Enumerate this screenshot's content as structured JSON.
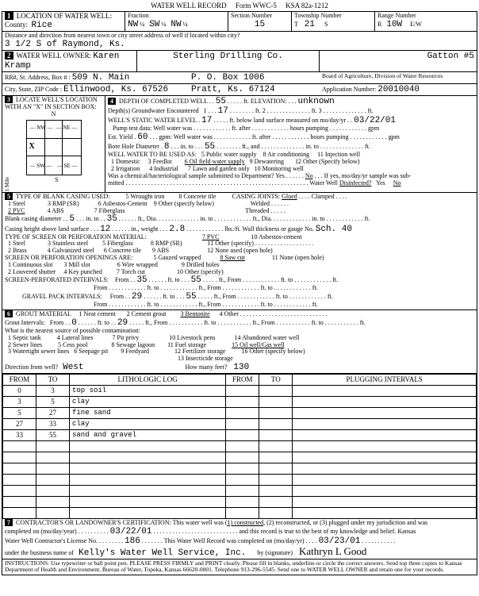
{
  "form": {
    "title": "WATER WELL RECORD",
    "formNo": "Form WWC-5",
    "ksa": "KSA 82a-1212"
  },
  "location": {
    "county": "Rice",
    "fraction": {
      "a": "NW",
      "a4": "¼",
      "b": "SW",
      "b4": "¼",
      "c": "NW",
      "c4": "¼"
    },
    "sectionNumber": "15",
    "township": "21",
    "townshipDir": "S",
    "range": "10W",
    "rangeDir": "E/W",
    "distDir": "3 1/2 S of Raymond, Ks."
  },
  "owner": {
    "name": "Karen Kramp",
    "company": "Sterling Drilling Co.",
    "wellId": "Gatton #5",
    "rr": "509 N. Main",
    "po": "P. O. Box 1006",
    "board": "Board of Agriculture, Division of Water Resources",
    "city": "Ellinwood, Ks. 67526",
    "city2": "Pratt, Ks. 67124",
    "appnum": "20010040"
  },
  "depth": {
    "completed": "55",
    "elevation": "unknown",
    "gwEncountered1": "17",
    "gwEncountered2": "3",
    "staticLevel": "17",
    "staticDate": "03/22/01",
    "estYield": "60",
    "boreDia": "8",
    "boreTo": "55"
  },
  "use": {
    "items": [
      "1 Domestic",
      "3 Feedlot",
      "5 Public water supply",
      "8 Air conditioning",
      "11 Injection well",
      "2 Irrigation",
      "4 Industrial",
      "7 Lawn and garden only",
      "10 Monitoring well",
      "12 Other (Specify below)"
    ],
    "selected": "6 Oil field water supply",
    "also": "9 Dewatering",
    "chemSample": "No",
    "disinfected": "No"
  },
  "casing": {
    "items": [
      "1 Steel",
      "3 RMP (SR)",
      "5 Wrought iron",
      "8 Concrete tile",
      "2 PVC",
      "4 ABS",
      "6 Asbestos-Cement",
      "9 Other (specify below)",
      "7 Fiberglass"
    ],
    "selected": "2 PVC",
    "joints": "Glued",
    "blankDia": "5",
    "blankTo": "35",
    "weight": "2.8",
    "gauge": "Sch. 40",
    "heightAbove": "12"
  },
  "screen": {
    "items": [
      "1 Steel",
      "3 Stainless steel",
      "5 Fiberglass",
      "8 RMP (SR)",
      "11 Other (specify)",
      "2 Brass",
      "4 Galvanized steel",
      "6 Concrete tile",
      "9 ABS",
      "12 None used (open hole)"
    ],
    "selected": "7 PVC",
    "openings": [
      "1 Continuous slot",
      "3 Mill slot",
      "5 Gauzed wrapped",
      "9 Drilled holes",
      "2 Louvered shutter",
      "4 Key punched",
      "6 Wire wrapped",
      "10 Other (specify)",
      "7 Torch cut",
      "11 None (open hole)"
    ],
    "openSel": "8 Saw cut",
    "perfFrom": "35",
    "perfTo": "55",
    "gravelFrom": "29",
    "gravelTo": "55"
  },
  "grout": {
    "items": [
      "1 Neat cement",
      "2 Cement grout",
      "4 Other"
    ],
    "selected": "3 Bentonite",
    "intFrom": "0",
    "intTo": "29"
  },
  "contam": {
    "items": [
      "1 Septic tank",
      "4 Lateral lines",
      "7 Pit privy",
      "10 Livestock pens",
      "14 Abandoned water well",
      "2 Sewer lines",
      "5 Cess pool",
      "8 Sewage lagoon",
      "11 Fuel storage",
      "16 Other (specify below)",
      "3 Watertight sewer lines",
      "6 Seepage pit",
      "9 Feedyard",
      "12 Fertilizer storage",
      "13 Insecticide storage"
    ],
    "selected": "15 Oil well/Gas well",
    "direction": "West",
    "feet": "130"
  },
  "log": {
    "cols": [
      "FROM",
      "TO",
      "LITHOLOGIC LOG",
      "FROM",
      "TO",
      "PLUGGING INTERVALS"
    ],
    "rows": [
      [
        "0",
        "3",
        "top soil",
        "",
        "",
        ""
      ],
      [
        "3",
        "5",
        "clay",
        "",
        "",
        ""
      ],
      [
        "5",
        "27",
        "fine sand",
        "",
        "",
        ""
      ],
      [
        "27",
        "33",
        "clay",
        "",
        "",
        ""
      ],
      [
        "33",
        "55",
        "sand and gravel",
        "",
        "",
        ""
      ],
      [
        "",
        "",
        "",
        "",
        "",
        ""
      ],
      [
        "",
        "",
        "",
        "",
        "",
        ""
      ],
      [
        "",
        "",
        "",
        "",
        "",
        ""
      ],
      [
        "",
        "",
        "",
        "",
        "",
        ""
      ],
      [
        "",
        "",
        "",
        "",
        "",
        ""
      ],
      [
        "",
        "",
        "",
        "",
        "",
        ""
      ],
      [
        "",
        "",
        "",
        "",
        "",
        ""
      ]
    ]
  },
  "cert": {
    "date": "03/22/01",
    "recordDate": "03/23/01",
    "license": "186",
    "business": "Kelly's Water Well Service, Inc.",
    "signature": "Kathryn L Good"
  },
  "instructions": "INSTRUCTIONS: Use typewriter or ball point pen. PLEASE PRESS FIRMLY and PRINT clearly. Please fill in blanks, underline or circle the correct answers. Send top three copies to Kansas Department of Health and Environment, Bureau of Water, Topeka, Kansas 66620-0001. Telephone 913-296-5545. Send one to WATER WELL OWNER and retain one for your records."
}
